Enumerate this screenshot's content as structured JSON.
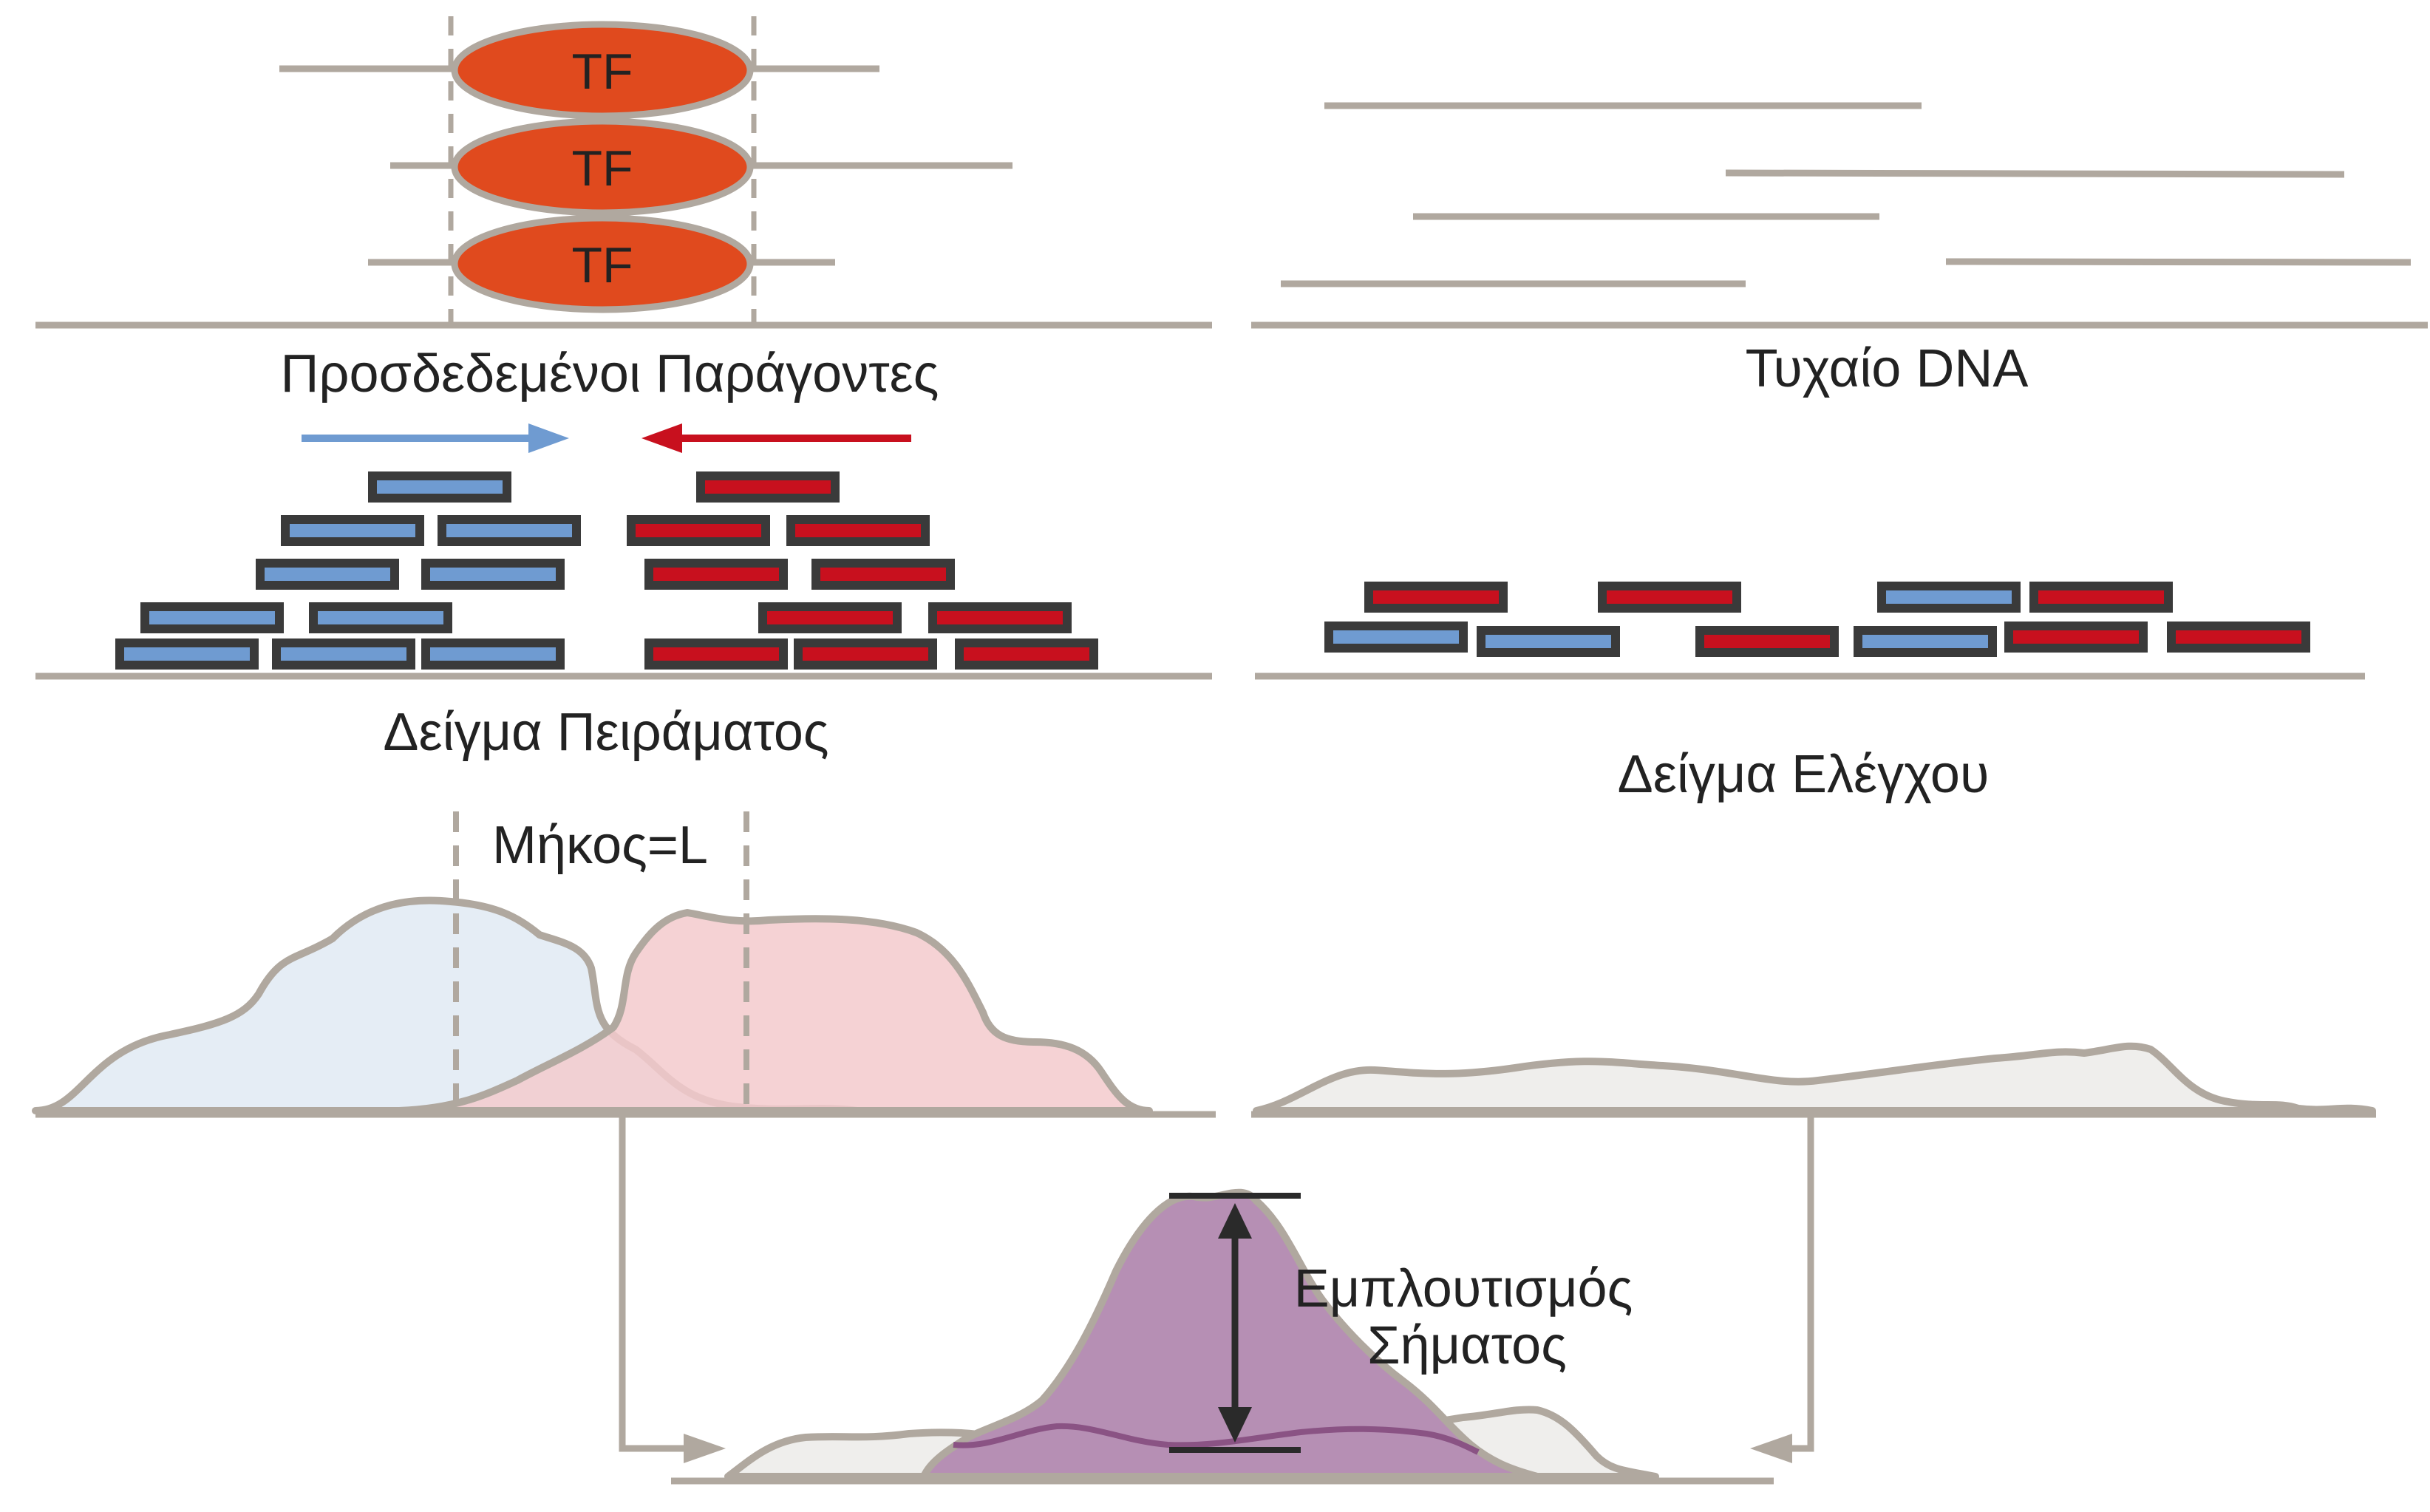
{
  "labels": {
    "tf": "TF",
    "bound_factors": "Προσδεδεμένοι Παράγοντες",
    "random_dna": "Τυχαίο DNA",
    "experiment_sample": "Δείγμα Πειράματος",
    "control_sample": "Δείγμα Ελέγχου",
    "length": "Μήκος=L",
    "enrichment_line1": "Εμπλουτισμός",
    "enrichment_line2": "Σήματος"
  },
  "colors": {
    "line": "#b0a89f",
    "tf_fill": "#e04a1e",
    "forward_read": "#6f9bd1",
    "reverse_read": "#c8101e",
    "read_border": "#3a3a3a",
    "experiment_forward_fill": "#e3ebf4",
    "experiment_reverse_fill": "#f3cacc",
    "control_fill": "#efeeec",
    "enrichment_fill": "#b68fb4",
    "arrow": "#2a2a2a"
  }
}
